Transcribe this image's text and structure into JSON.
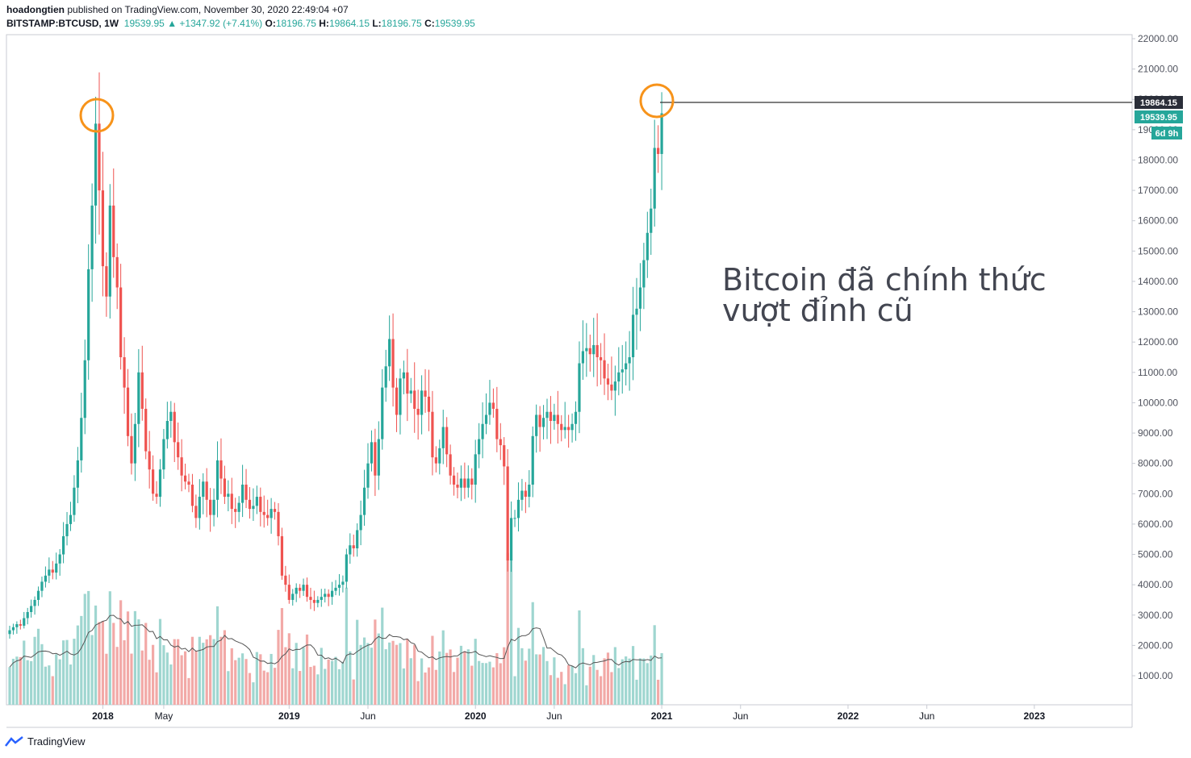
{
  "header": {
    "author": "hoadongtien",
    "published_text": "published on TradingView.com, November 30, 2020 22:49:04 +07",
    "symbol": "BITSTAMP:BTCUSD, 1W",
    "last": "19539.95",
    "change": "+1347.92 (+7.41%)",
    "o_label": "O:",
    "o": "18196.75",
    "h_label": "H:",
    "h": "19864.15",
    "l_label": "L:",
    "l": "18196.75",
    "c_label": "C:",
    "c": "19539.95"
  },
  "annotation": {
    "line1": "Bitcoin đã chính thức",
    "line2": "vượt đỉnh cũ"
  },
  "price_labels": {
    "high": "19864.15",
    "last": "19539.95",
    "countdown": "6d 9h"
  },
  "footer": {
    "brand": "TradingView"
  },
  "colors": {
    "up": "#26a69a",
    "down": "#ef5350",
    "vol_up": "#9fd6d0",
    "vol_down": "#f2a9a7",
    "ma": "#555555",
    "circle": "#f7931a"
  },
  "chart_data": {
    "type": "candlestick",
    "interval": "1W",
    "y_ticks": [
      "22000.00",
      "21000.00",
      "20000.00",
      "19000.00",
      "18000.00",
      "17000.00",
      "16000.00",
      "15000.00",
      "14000.00",
      "13000.00",
      "12000.00",
      "11000.00",
      "10000.00",
      "9000.00",
      "8000.00",
      "7000.00",
      "6000.00",
      "5000.00",
      "4000.00",
      "3000.00",
      "2000.00",
      "1000.00"
    ],
    "x_ticks": [
      {
        "label": "2018",
        "week": 26
      },
      {
        "label": "May",
        "week": 43
      },
      {
        "label": "2019",
        "week": 78
      },
      {
        "label": "Jun",
        "week": 100
      },
      {
        "label": "2020",
        "week": 130
      },
      {
        "label": "Jun",
        "week": 152
      },
      {
        "label": "2021",
        "week": 182
      },
      {
        "label": "Jun",
        "week": 204
      },
      {
        "label": "2022",
        "week": 234
      },
      {
        "label": "Jun",
        "week": 256
      },
      {
        "label": "2023",
        "week": 286
      }
    ],
    "close_series": [
      2500,
      2600,
      2700,
      2650,
      2900,
      3100,
      3300,
      3500,
      3800,
      4100,
      4300,
      4500,
      4400,
      4700,
      5000,
      5600,
      6000,
      6300,
      7200,
      8100,
      9500,
      11400,
      14400,
      16500,
      19200,
      17000,
      14500,
      13500,
      16500,
      14800,
      13800,
      11500,
      10500,
      8900,
      8000,
      9300,
      11000,
      9800,
      8400,
      7800,
      7000,
      6900,
      7800,
      8800,
      9400,
      9700,
      8700,
      8200,
      7600,
      7400,
      7300,
      6600,
      6200,
      6900,
      7400,
      6800,
      6300,
      6800,
      8100,
      7500,
      6900,
      7000,
      6500,
      6400,
      6700,
      7300,
      6800,
      6500,
      6600,
      6900,
      6400,
      6300,
      6200,
      6500,
      6400,
      5600,
      4300,
      4000,
      3500,
      3700,
      3900,
      3800,
      4000,
      3600,
      3500,
      3400,
      3500,
      3600,
      3700,
      3600,
      3800,
      3900,
      4000,
      4100,
      5000,
      5300,
      5200,
      5800,
      6300,
      7200,
      8000,
      8700,
      7600,
      8800,
      10500,
      11200,
      12100,
      10500,
      9600,
      10800,
      11000,
      10300,
      10400,
      9800,
      9600,
      10400,
      10200,
      9700,
      8200,
      8000,
      8500,
      9200,
      8300,
      7600,
      7300,
      7200,
      7500,
      7200,
      7500,
      7300,
      8300,
      8800,
      9300,
      9600,
      10000,
      9800,
      8800,
      8600,
      7900,
      4800,
      6200,
      6200,
      6800,
      7100,
      6900,
      7300,
      8900,
      9600,
      9200,
      9500,
      9700,
      9400,
      9600,
      9300,
      9100,
      9200,
      9100,
      9300,
      9700,
      11300,
      11700,
      11800,
      11600,
      11900,
      11500,
      11400,
      10800,
      10600,
      10400,
      10700,
      11000,
      11100,
      11300,
      11500,
      12900,
      13100,
      13800,
      14700,
      15600,
      16400,
      18400,
      18200,
      19540
    ]
  }
}
